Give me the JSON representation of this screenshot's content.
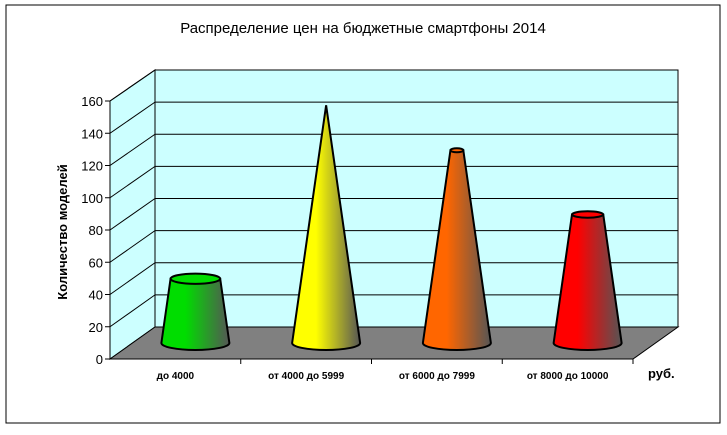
{
  "chart_data": {
    "type": "bar",
    "style": "3d-cone",
    "title": "Распределение цен на бюджетные смартфоны 2014",
    "ylabel": "Количество моделей",
    "xlabel": "руб.",
    "categories": [
      "до 4000",
      "от 4000 до 5999",
      "от 6000 до 7999",
      "от 8000 до 10000"
    ],
    "values": [
      40,
      148,
      120,
      80
    ],
    "colors": [
      "#00DD00",
      "#FFFF00",
      "#FF6600",
      "#FF0000"
    ],
    "ylim": [
      0,
      160
    ],
    "yticks": [
      "0",
      "20",
      "40",
      "60",
      "80",
      "100",
      "120",
      "140",
      "160"
    ],
    "grid": true,
    "wall_color": "#CCFFFF",
    "floor_color": "#808080"
  }
}
